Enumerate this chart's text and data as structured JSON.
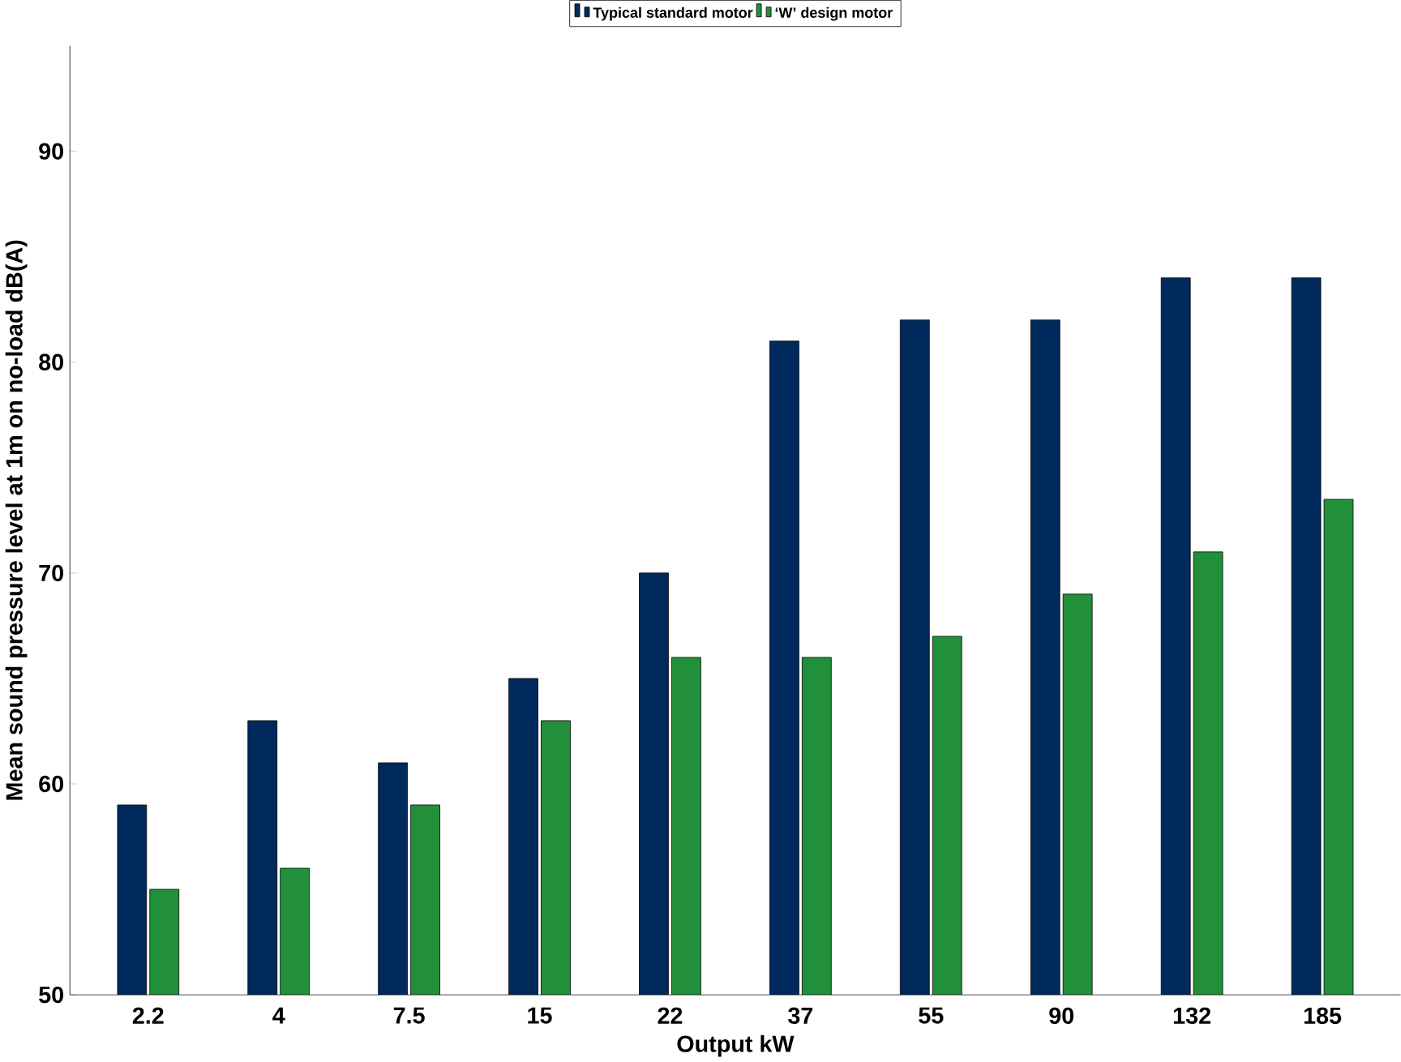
{
  "chart_data": {
    "type": "bar",
    "xlabel": "Output kW",
    "ylabel": "Mean sound pressure level at 1m on no-load dB(A)",
    "categories": [
      "2.2",
      "4",
      "7.5",
      "15",
      "22",
      "37",
      "55",
      "90",
      "132",
      "185"
    ],
    "series": [
      {
        "name": "Typical standard motor",
        "color": "#002a5c",
        "values": [
          59,
          63,
          61,
          65,
          70,
          81,
          82,
          82,
          84,
          84
        ]
      },
      {
        "name": "‘W’ design motor",
        "color": "#22903a",
        "values": [
          55,
          56,
          59,
          63,
          66,
          66,
          67,
          69,
          71,
          73.5
        ]
      }
    ],
    "ylim": [
      50,
      95
    ],
    "yticks": [
      50,
      60,
      70,
      80,
      90
    ],
    "legend": "top",
    "grid": false
  }
}
